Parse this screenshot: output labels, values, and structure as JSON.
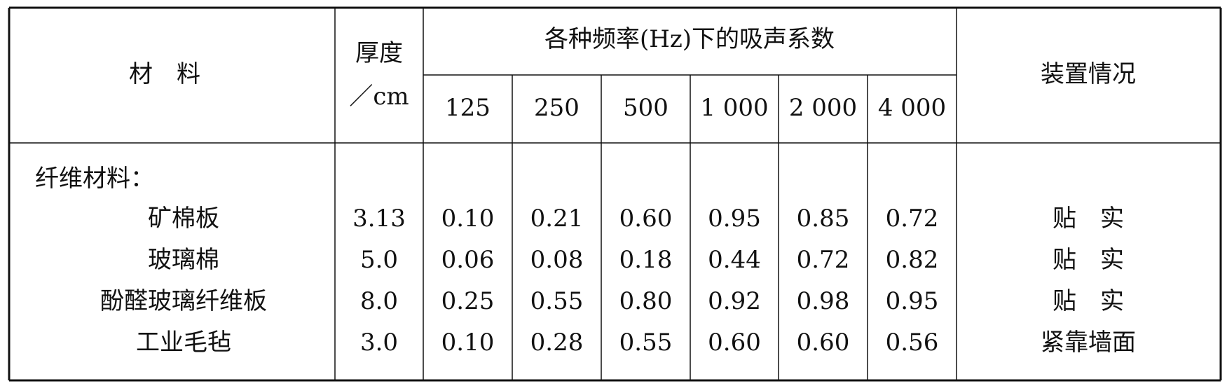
{
  "header": {
    "material": "材　料",
    "thickness": [
      "厚度",
      "／cm"
    ],
    "frequency_group": "各种频率(Hz)下的吸声系数",
    "frequencies": [
      "125",
      "250",
      "500",
      "1 000",
      "2 000",
      "4 000"
    ],
    "installation": "装置情况"
  },
  "group": "纤维材料：",
  "rows": [
    {
      "material": "矿棉板",
      "thickness": "3.13",
      "coefficients": [
        "0.10",
        "0.21",
        "0.60",
        "0.95",
        "0.85",
        "0.72"
      ],
      "installation": "贴　实"
    },
    {
      "material": "玻璃棉",
      "thickness": "5.0",
      "coefficients": [
        "0.06",
        "0.08",
        "0.18",
        "0.44",
        "0.72",
        "0.82"
      ],
      "installation": "贴　实"
    },
    {
      "material": "酚醛玻璃纤维板",
      "thickness": "8.0",
      "coefficients": [
        "0.25",
        "0.55",
        "0.80",
        "0.92",
        "0.98",
        "0.95"
      ],
      "installation": "贴　实"
    },
    {
      "material": "工业毛毡",
      "thickness": "3.0",
      "coefficients": [
        "0.10",
        "0.28",
        "0.55",
        "0.60",
        "0.60",
        "0.56"
      ],
      "installation": "紧靠墙面"
    }
  ]
}
